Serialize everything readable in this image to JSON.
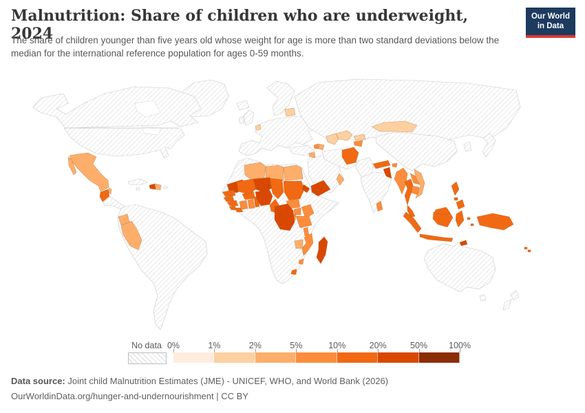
{
  "header": {
    "title": "Malnutrition: Share of children who are underweight, 2024",
    "subtitle": "The share of children younger than five years old whose weight for age is more than two standard deviations below the median for the international reference population for ages 0-59 months.",
    "logo_line1": "Our World",
    "logo_line2": "in Data",
    "logo_bg": "#1d3a5f",
    "logo_accent": "#d93a32"
  },
  "legend": {
    "no_data_label": "No data",
    "tick_labels": [
      "0%",
      "1%",
      "2%",
      "5%",
      "10%",
      "20%",
      "50%",
      "100%"
    ],
    "bin_colors": [
      "#feedde",
      "#fdd0a2",
      "#fdae6b",
      "#fd8d3c",
      "#f16913",
      "#d94801",
      "#8c2d04"
    ]
  },
  "footer": {
    "source_label": "Data source:",
    "source_text": " Joint child Malnutrition Estimates (JME) - UNICEF, WHO, and World Bank (2026)",
    "link_line": "OurWorldinData.org/hunger-and-undernourishment | CC BY"
  },
  "chart_data": {
    "type": "choropleth_map",
    "title": "Malnutrition: Share of children who are underweight, 2024",
    "unit": "% of children under five",
    "bin_edges_percent": [
      0,
      1,
      2,
      5,
      10,
      20,
      50,
      100
    ],
    "bin_labels": [
      "0-1%",
      "1-2%",
      "2-5%",
      "5-10%",
      "10-20%",
      "20-50%",
      "50-100%"
    ],
    "no_data_regions": "United States, Canada, Greenland, most of Europe, Russia, China, India, Iran, Saudi Arabia, Pakistan, Brazil and most of South America, Australia, Japan, Angola, Zambia, South Africa, Ethiopia, Somalia",
    "regions": [
      {
        "id": "mexico",
        "name": "Mexico",
        "bin": 2
      },
      {
        "id": "belize",
        "name": "Belize",
        "bin": 2
      },
      {
        "id": "guatemala",
        "name": "Guatemala",
        "bin": 4
      },
      {
        "id": "haiti",
        "name": "Haiti",
        "bin": 5
      },
      {
        "id": "dominican-republic",
        "name": "Dominican Republic",
        "bin": 2
      },
      {
        "id": "ecuador",
        "name": "Ecuador",
        "bin": 2
      },
      {
        "id": "peru",
        "name": "Peru",
        "bin": 2
      },
      {
        "id": "belgium-netherlands",
        "name": "Belgium/Netherlands",
        "bin": 1
      },
      {
        "id": "latvia-lithuania",
        "name": "Latvia/Lithuania",
        "bin": 1
      },
      {
        "id": "algeria",
        "name": "Algeria",
        "bin": 2
      },
      {
        "id": "libya",
        "name": "Libya",
        "bin": 2
      },
      {
        "id": "egypt",
        "name": "Egypt",
        "bin": 2
      },
      {
        "id": "mauritania",
        "name": "Mauritania",
        "bin": 5
      },
      {
        "id": "senegal",
        "name": "Senegal",
        "bin": 4
      },
      {
        "id": "gambia-guinea-bissau",
        "name": "Gambia/Guinea-Bissau",
        "bin": 4
      },
      {
        "id": "guinea",
        "name": "Guinea",
        "bin": 4
      },
      {
        "id": "sierra-leone",
        "name": "Sierra Leone",
        "bin": 4
      },
      {
        "id": "liberia",
        "name": "Liberia",
        "bin": 4
      },
      {
        "id": "cote-divoire",
        "name": "Cote d'Ivoire",
        "bin": 3
      },
      {
        "id": "ghana",
        "name": "Ghana",
        "bin": 3
      },
      {
        "id": "togo-benin",
        "name": "Togo/Benin",
        "bin": 4
      },
      {
        "id": "burkina-faso",
        "name": "Burkina Faso",
        "bin": 4
      },
      {
        "id": "mali",
        "name": "Mali",
        "bin": 4
      },
      {
        "id": "niger",
        "name": "Niger",
        "bin": 5
      },
      {
        "id": "nigeria",
        "name": "Nigeria",
        "bin": 5
      },
      {
        "id": "chad",
        "name": "Chad",
        "bin": 4
      },
      {
        "id": "cameroon",
        "name": "Cameroon",
        "bin": 4
      },
      {
        "id": "sudan",
        "name": "Sudan",
        "bin": 4
      },
      {
        "id": "south-sudan",
        "name": "South Sudan",
        "bin": 3
      },
      {
        "id": "eritrea-djibouti",
        "name": "Eritrea/Djibouti",
        "bin": 5
      },
      {
        "id": "uganda",
        "name": "Uganda",
        "bin": 3
      },
      {
        "id": "kenya",
        "name": "Kenya",
        "bin": 3
      },
      {
        "id": "tanzania",
        "name": "Tanzania",
        "bin": 3
      },
      {
        "id": "rwanda-burundi",
        "name": "Rwanda/Burundi",
        "bin": 3
      },
      {
        "id": "drc",
        "name": "Democratic Republic of Congo",
        "bin": 5
      },
      {
        "id": "malawi",
        "name": "Malawi",
        "bin": 3
      },
      {
        "id": "mozambique",
        "name": "Mozambique",
        "bin": 3
      },
      {
        "id": "zimbabwe",
        "name": "Zimbabwe",
        "bin": 2
      },
      {
        "id": "lesotho",
        "name": "Lesotho",
        "bin": 4
      },
      {
        "id": "eswatini",
        "name": "Eswatini",
        "bin": 3
      },
      {
        "id": "madagascar",
        "name": "Madagascar",
        "bin": 5
      },
      {
        "id": "yemen",
        "name": "Yemen",
        "bin": 5
      },
      {
        "id": "oman",
        "name": "Oman",
        "bin": 2
      },
      {
        "id": "syria",
        "name": "Syria",
        "bin": 2
      },
      {
        "id": "armenia",
        "name": "Armenia",
        "bin": 3
      },
      {
        "id": "azerbaijan",
        "name": "Azerbaijan",
        "bin": 2
      },
      {
        "id": "turkmenistan",
        "name": "Turkmenistan",
        "bin": 1
      },
      {
        "id": "uzbekistan",
        "name": "Uzbekistan",
        "bin": 1
      },
      {
        "id": "kyrgyzstan",
        "name": "Kyrgyzstan",
        "bin": 1
      },
      {
        "id": "tajikistan",
        "name": "Tajikistan",
        "bin": 3
      },
      {
        "id": "mongolia",
        "name": "Mongolia",
        "bin": 1
      },
      {
        "id": "afghanistan",
        "name": "Afghanistan",
        "bin": 4
      },
      {
        "id": "nepal",
        "name": "Nepal",
        "bin": 4
      },
      {
        "id": "bhutan",
        "name": "Bhutan",
        "bin": 3
      },
      {
        "id": "bangladesh",
        "name": "Bangladesh",
        "bin": 5
      },
      {
        "id": "sri-lanka",
        "name": "Sri Lanka",
        "bin": 3
      },
      {
        "id": "myanmar",
        "name": "Myanmar",
        "bin": 3
      },
      {
        "id": "laos",
        "name": "Laos",
        "bin": 3
      },
      {
        "id": "vietnam",
        "name": "Vietnam",
        "bin": 2
      },
      {
        "id": "cambodia",
        "name": "Cambodia",
        "bin": 3
      },
      {
        "id": "thailand",
        "name": "Thailand",
        "bin": 4
      },
      {
        "id": "malaysia",
        "name": "Malaysia",
        "bin": 4
      },
      {
        "id": "indonesia",
        "name": "Indonesia",
        "bin": 4
      },
      {
        "id": "philippines",
        "name": "Philippines",
        "bin": 4
      },
      {
        "id": "timor-leste",
        "name": "Timor-Leste",
        "bin": 5
      },
      {
        "id": "papua-new-guinea",
        "name": "Papua New Guinea",
        "bin": 4
      },
      {
        "id": "fiji",
        "name": "Fiji",
        "bin": 4
      }
    ]
  }
}
